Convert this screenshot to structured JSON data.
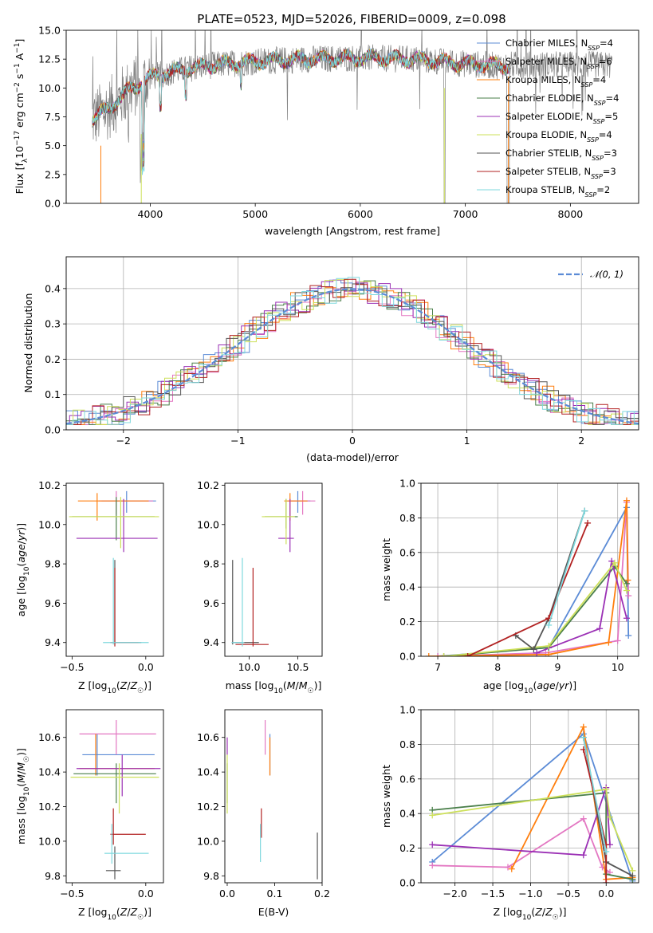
{
  "title": "PLATE=0523, MJD=52026, FIBERID=0009, z=0.098",
  "colors": {
    "chabrier_miles": "#5b8bd6",
    "salpeter_miles": "#e377c2",
    "kroupa_miles": "#ff7f0e",
    "chabrier_elodie": "#4a7f4a",
    "salpeter_elodie": "#9b30b5",
    "kroupa_elodie": "#cde05a",
    "chabrier_stelib": "#555555",
    "salpeter_stelib": "#b22222",
    "kroupa_stelib": "#7fd8dd",
    "data": "#808080",
    "normal": "#5b8bd6"
  },
  "legend": [
    {
      "label": "Chabrier MILES, N",
      "sub": "SSP",
      "tail": "=4",
      "color": "#5b8bd6"
    },
    {
      "label": "Salpeter MILES, N",
      "sub": "SSP",
      "tail": "=6",
      "color": "#e377c2"
    },
    {
      "label": "Kroupa MILES, N",
      "sub": "SSP",
      "tail": "=4",
      "color": "#ff7f0e"
    },
    {
      "label": "Chabrier ELODIE, N",
      "sub": "SSP",
      "tail": "=4",
      "color": "#4a7f4a"
    },
    {
      "label": "Salpeter ELODIE, N",
      "sub": "SSP",
      "tail": "=5",
      "color": "#9b30b5"
    },
    {
      "label": "Kroupa ELODIE, N",
      "sub": "SSP",
      "tail": "=4",
      "color": "#cde05a"
    },
    {
      "label": "Chabrier STELIB, N",
      "sub": "SSP",
      "tail": "=3",
      "color": "#555555"
    },
    {
      "label": "Salpeter STELIB, N",
      "sub": "SSP",
      "tail": "=3",
      "color": "#b22222"
    },
    {
      "label": "Kroupa STELIB, N",
      "sub": "SSP",
      "tail": "=2",
      "color": "#7fd8dd"
    }
  ],
  "chart_data": [
    {
      "id": "spectrum",
      "type": "line",
      "xlabel": "wavelength [Angstrom, rest frame]",
      "ylabel": "Flux [fλ10⁻¹⁷ erg cm⁻² s⁻¹ A⁻¹]",
      "xlim": [
        3200,
        8650
      ],
      "ylim": [
        0,
        15
      ],
      "xticks": [
        4000,
        5000,
        6000,
        7000,
        8000
      ],
      "yticks": [
        0.0,
        2.5,
        5.0,
        7.5,
        10.0,
        12.5,
        15.0
      ],
      "continuum": [
        [
          3450,
          7.3
        ],
        [
          3600,
          8.2
        ],
        [
          3800,
          9.8
        ],
        [
          4000,
          10.9
        ],
        [
          4200,
          11.4
        ],
        [
          4500,
          11.9
        ],
        [
          5000,
          12.3
        ],
        [
          5500,
          12.5
        ],
        [
          6000,
          12.6
        ],
        [
          6500,
          12.5
        ],
        [
          7000,
          12.1
        ],
        [
          7400,
          11.9
        ]
      ],
      "grid": false
    },
    {
      "id": "residuals",
      "type": "histogram",
      "xlabel": "(data-model)/error",
      "ylabel": "Normed distribution",
      "xlim": [
        -2.5,
        2.5
      ],
      "ylim": [
        0,
        0.49
      ],
      "xticks": [
        -2,
        -1,
        0,
        1,
        2
      ],
      "yticks": [
        0.0,
        0.1,
        0.2,
        0.3,
        0.4
      ],
      "bin_width": 0.1,
      "series_name": "N(0,1)",
      "grid": true,
      "legend_position": "top-right"
    },
    {
      "id": "age_vs_Z",
      "type": "errorbar",
      "xlabel": "Z [log₁₀(Z/Z☉)]",
      "ylabel": "age  [log₁₀(age/yr)]",
      "xlim": [
        -0.54,
        0.12
      ],
      "ylim": [
        9.33,
        10.21
      ],
      "xticks": [
        -0.5,
        0.0
      ],
      "yticks": [
        9.4,
        9.6,
        9.8,
        10.0,
        10.2
      ],
      "points": [
        {
          "color": "#5b8bd6",
          "x": -0.13,
          "xl": -0.3,
          "xh": 0.07,
          "y": 10.12,
          "yl": 10.06,
          "yh": 10.17
        },
        {
          "color": "#e377c2",
          "x": -0.2,
          "xl": -0.32,
          "xh": 0.05,
          "y": 10.12,
          "yl": 10.05,
          "yh": 10.17
        },
        {
          "color": "#ff7f0e",
          "x": -0.33,
          "xl": -0.46,
          "xh": 0.02,
          "y": 10.12,
          "yl": 10.02,
          "yh": 10.16
        },
        {
          "color": "#4a7f4a",
          "x": -0.2,
          "xl": -0.5,
          "xh": 0.06,
          "y": 10.04,
          "yl": 9.92,
          "yh": 10.14
        },
        {
          "color": "#9b30b5",
          "x": -0.15,
          "xl": -0.47,
          "xh": 0.08,
          "y": 9.93,
          "yl": 9.86,
          "yh": 10.13
        },
        {
          "color": "#cde05a",
          "x": -0.17,
          "xl": -0.52,
          "xh": 0.09,
          "y": 10.04,
          "yl": 9.88,
          "yh": 10.14
        },
        {
          "color": "#555555",
          "x": -0.21,
          "xl": -0.24,
          "xh": -0.03,
          "y": 9.4,
          "yl": 9.39,
          "yh": 9.82
        },
        {
          "color": "#b22222",
          "x": -0.21,
          "xl": -0.24,
          "xh": -0.05,
          "y": 9.4,
          "yl": 9.38,
          "yh": 9.78
        },
        {
          "color": "#7fd8dd",
          "x": -0.22,
          "xl": -0.29,
          "xh": 0.02,
          "y": 9.4,
          "yl": 9.39,
          "yh": 9.83
        }
      ]
    },
    {
      "id": "age_vs_mass",
      "type": "errorbar",
      "xlabel": "mass [log₁₀(M/M☉)]",
      "ylabel": "",
      "xlim": [
        9.75,
        10.75
      ],
      "ylim": [
        9.33,
        10.21
      ],
      "xticks": [
        10.0,
        10.5
      ],
      "yticks": [
        9.4,
        9.6,
        9.8,
        10.0,
        10.2
      ],
      "points": [
        {
          "color": "#5b8bd6",
          "x": 10.5,
          "xl": 10.43,
          "xh": 10.63,
          "y": 10.12,
          "yl": 10.06,
          "yh": 10.17
        },
        {
          "color": "#e377c2",
          "x": 10.55,
          "xl": 10.4,
          "xh": 10.68,
          "y": 10.12,
          "yl": 10.05,
          "yh": 10.17
        },
        {
          "color": "#ff7f0e",
          "x": 10.42,
          "xl": 10.36,
          "xh": 10.6,
          "y": 10.12,
          "yl": 10.02,
          "yh": 10.16
        },
        {
          "color": "#4a7f4a",
          "x": 10.38,
          "xl": 10.16,
          "xh": 10.5,
          "y": 10.04,
          "yl": 9.98,
          "yh": 10.13
        },
        {
          "color": "#9b30b5",
          "x": 10.42,
          "xl": 10.3,
          "xh": 10.46,
          "y": 9.93,
          "yl": 9.86,
          "yh": 10.13
        },
        {
          "color": "#cde05a",
          "x": 10.38,
          "xl": 10.13,
          "xh": 10.47,
          "y": 10.04,
          "yl": 9.9,
          "yh": 10.13
        },
        {
          "color": "#555555",
          "x": 9.83,
          "xl": 9.82,
          "xh": 10.1,
          "y": 9.4,
          "yl": 9.39,
          "yh": 9.82
        },
        {
          "color": "#b22222",
          "x": 10.04,
          "xl": 9.86,
          "xh": 10.2,
          "y": 9.39,
          "yl": 9.38,
          "yh": 9.78
        },
        {
          "color": "#7fd8dd",
          "x": 9.93,
          "xl": 9.82,
          "xh": 9.95,
          "y": 9.4,
          "yl": 9.38,
          "yh": 9.83
        }
      ]
    },
    {
      "id": "mass_weight_vs_age",
      "type": "line",
      "xlabel": "age  [log₁₀(age/yr)]",
      "ylabel": "mass weight",
      "xlim": [
        6.72,
        10.35
      ],
      "ylim": [
        0,
        1.0
      ],
      "xticks": [
        7,
        8,
        9,
        10
      ],
      "yticks": [
        0.0,
        0.2,
        0.4,
        0.6,
        0.8,
        1.0
      ],
      "grid": true,
      "series": [
        {
          "color": "#5b8bd6",
          "points": [
            [
              7.0,
              0.0
            ],
            [
              8.85,
              0.05
            ],
            [
              10.15,
              0.86
            ],
            [
              10.18,
              0.12
            ]
          ]
        },
        {
          "color": "#e377c2",
          "points": [
            [
              7.0,
              0.0
            ],
            [
              8.8,
              0.02
            ],
            [
              10.0,
              0.09
            ],
            [
              10.15,
              0.89
            ],
            [
              10.18,
              0.35
            ]
          ]
        },
        {
          "color": "#ff7f0e",
          "points": [
            [
              6.85,
              0.0
            ],
            [
              8.85,
              0.01
            ],
            [
              9.85,
              0.08
            ],
            [
              10.15,
              0.9
            ],
            [
              10.17,
              0.44
            ]
          ]
        },
        {
          "color": "#4a7f4a",
          "points": [
            [
              7.1,
              0.0
            ],
            [
              8.85,
              0.05
            ],
            [
              9.95,
              0.52
            ],
            [
              10.15,
              0.42
            ]
          ]
        },
        {
          "color": "#9b30b5",
          "points": [
            [
              8.65,
              0.02
            ],
            [
              9.7,
              0.16
            ],
            [
              9.9,
              0.55
            ],
            [
              10.15,
              0.22
            ]
          ]
        },
        {
          "color": "#cde05a",
          "points": [
            [
              7.1,
              0.0
            ],
            [
              8.85,
              0.06
            ],
            [
              9.95,
              0.54
            ],
            [
              10.15,
              0.38
            ]
          ]
        },
        {
          "color": "#555555",
          "points": [
            [
              8.3,
              0.12
            ],
            [
              8.6,
              0.04
            ],
            [
              8.85,
              0.22
            ],
            [
              9.45,
              0.84
            ]
          ]
        },
        {
          "color": "#b22222",
          "points": [
            [
              7.5,
              0.0
            ],
            [
              8.85,
              0.22
            ],
            [
              9.5,
              0.77
            ]
          ]
        },
        {
          "color": "#7fd8dd",
          "points": [
            [
              8.85,
              0.18
            ],
            [
              9.45,
              0.84
            ]
          ]
        }
      ]
    },
    {
      "id": "mass_vs_Z",
      "type": "errorbar",
      "xlabel": "Z [log₁₀(Z/Z☉)]",
      "ylabel": "mass [log₁₀(M/M☉)]",
      "xlim": [
        -0.54,
        0.12
      ],
      "ylim": [
        9.76,
        10.76
      ],
      "xticks": [
        -0.5,
        0.0
      ],
      "yticks": [
        9.8,
        10.0,
        10.2,
        10.4,
        10.6
      ],
      "points": [
        {
          "color": "#5b8bd6",
          "x": -0.33,
          "xl": -0.43,
          "xh": 0.06,
          "y": 10.5,
          "yl": 10.38,
          "yh": 10.62
        },
        {
          "color": "#e377c2",
          "x": -0.2,
          "xl": -0.45,
          "xh": 0.07,
          "y": 10.62,
          "yl": 10.5,
          "yh": 10.7
        },
        {
          "color": "#ff7f0e",
          "x": -0.34,
          "xl": -0.45,
          "xh": 0.06,
          "y": 10.42,
          "yl": 10.38,
          "yh": 10.62
        },
        {
          "color": "#4a7f4a",
          "x": -0.2,
          "xl": -0.49,
          "xh": 0.07,
          "y": 10.39,
          "yl": 10.22,
          "yh": 10.45
        },
        {
          "color": "#9b30b5",
          "x": -0.16,
          "xl": -0.47,
          "xh": 0.1,
          "y": 10.42,
          "yl": 10.26,
          "yh": 10.5
        },
        {
          "color": "#cde05a",
          "x": -0.18,
          "xl": -0.51,
          "xh": 0.09,
          "y": 10.37,
          "yl": 10.16,
          "yh": 10.45
        },
        {
          "color": "#555555",
          "x": -0.21,
          "xl": -0.27,
          "xh": -0.17,
          "y": 9.83,
          "yl": 9.78,
          "yh": 9.97
        },
        {
          "color": "#b22222",
          "x": -0.22,
          "xl": -0.24,
          "xh": 0.0,
          "y": 10.04,
          "yl": 9.98,
          "yh": 10.19
        },
        {
          "color": "#7fd8dd",
          "x": -0.23,
          "xl": -0.28,
          "xh": 0.02,
          "y": 9.93,
          "yl": 9.87,
          "yh": 10.1
        }
      ]
    },
    {
      "id": "mass_vs_ebv",
      "type": "errorbar",
      "xlabel": "E(B-V)",
      "ylabel": "",
      "xlim": [
        -0.005,
        0.2
      ],
      "ylim": [
        9.76,
        10.76
      ],
      "xticks": [
        0.0,
        0.1,
        0.2
      ],
      "yticks": [
        9.8,
        10.0,
        10.2,
        10.4,
        10.6
      ],
      "points": [
        {
          "color": "#5b8bd6",
          "x": 0.09,
          "yl": 10.38,
          "yh": 10.62
        },
        {
          "color": "#e377c2",
          "x": 0.08,
          "yl": 10.5,
          "yh": 10.7
        },
        {
          "color": "#ff7f0e",
          "x": 0.09,
          "yl": 10.38,
          "yh": 10.6
        },
        {
          "color": "#4a7f4a",
          "x": 0.0,
          "yl": 10.22,
          "yh": 10.45
        },
        {
          "color": "#9b30b5",
          "x": 0.0,
          "yl": 10.5,
          "yh": 10.6
        },
        {
          "color": "#cde05a",
          "x": 0.0,
          "yl": 10.16,
          "yh": 10.5
        },
        {
          "color": "#555555",
          "x": 0.19,
          "yl": 9.78,
          "yh": 10.05
        },
        {
          "color": "#b22222",
          "x": 0.072,
          "yl": 10.02,
          "yh": 10.19
        },
        {
          "color": "#7fd8dd",
          "x": 0.07,
          "yl": 9.88,
          "yh": 10.1
        }
      ]
    },
    {
      "id": "mass_weight_vs_Z",
      "type": "line",
      "xlabel": "Z [log₁₀(Z/Z☉)]",
      "ylabel": "mass weight",
      "xlim": [
        -2.45,
        0.43
      ],
      "ylim": [
        0,
        1.0
      ],
      "xticks": [
        -2.0,
        -1.5,
        -1.0,
        -0.5,
        0.0
      ],
      "yticks": [
        0.0,
        0.2,
        0.4,
        0.6,
        0.8,
        1.0
      ],
      "grid": true,
      "series": [
        {
          "color": "#5b8bd6",
          "points": [
            [
              -2.3,
              0.12
            ],
            [
              -0.3,
              0.86
            ],
            [
              0.35,
              0.01
            ]
          ]
        },
        {
          "color": "#e377c2",
          "points": [
            [
              -2.3,
              0.1
            ],
            [
              -1.3,
              0.09
            ],
            [
              -0.3,
              0.37
            ],
            [
              -0.05,
              0.09
            ],
            [
              0.05,
              0.06
            ]
          ]
        },
        {
          "color": "#ff7f0e",
          "points": [
            [
              -1.25,
              0.08
            ],
            [
              -0.3,
              0.9
            ],
            [
              0.0,
              0.02
            ],
            [
              0.35,
              0.03
            ]
          ]
        },
        {
          "color": "#4a7f4a",
          "points": [
            [
              -2.3,
              0.42
            ],
            [
              0.0,
              0.52
            ],
            [
              0.0,
              0.05
            ],
            [
              0.35,
              0.02
            ]
          ]
        },
        {
          "color": "#9b30b5",
          "points": [
            [
              -2.3,
              0.22
            ],
            [
              -0.3,
              0.16
            ],
            [
              0.0,
              0.55
            ],
            [
              0.05,
              0.22
            ]
          ]
        },
        {
          "color": "#cde05a",
          "points": [
            [
              -2.3,
              0.39
            ],
            [
              0.0,
              0.54
            ],
            [
              0.05,
              0.38
            ],
            [
              0.35,
              0.07
            ]
          ]
        },
        {
          "color": "#555555",
          "points": [
            [
              -0.3,
              0.84
            ],
            [
              0.0,
              0.12
            ],
            [
              0.35,
              0.04
            ]
          ]
        },
        {
          "color": "#b22222",
          "points": [
            [
              -0.3,
              0.77
            ],
            [
              0.0,
              0.22
            ],
            [
              0.0,
              0.0
            ]
          ]
        },
        {
          "color": "#7fd8dd",
          "points": [
            [
              -0.3,
              0.84
            ],
            [
              0.0,
              0.18
            ]
          ]
        }
      ]
    }
  ]
}
